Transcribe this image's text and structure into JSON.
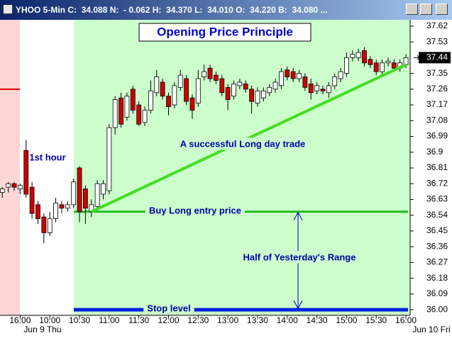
{
  "title_bar": "YHOO 5-Min C:  34.088 N:  - 0.062 H:  34.370 L:  34.010 O:  34.220 B:  34.080 ...",
  "chart_data": {
    "type": "candlestick",
    "title": "Opening Price Principle",
    "categories": [
      null,
      null,
      null,
      "16:00",
      null,
      null,
      null,
      null,
      "10:00",
      null,
      null,
      null,
      null,
      "10:30",
      null,
      null,
      null,
      null,
      "11:00",
      null,
      null,
      null,
      null,
      "11:30",
      null,
      null,
      null,
      null,
      "12:00",
      null,
      null,
      null,
      null,
      "12:30",
      null,
      null,
      null,
      null,
      "13:00",
      null,
      null,
      null,
      null,
      "13:30",
      null,
      null,
      null,
      null,
      "14:00",
      null,
      null,
      null,
      null,
      "14:30",
      null,
      null,
      null,
      null,
      "15:00",
      null,
      null,
      null,
      null,
      "15:30",
      null,
      null,
      null,
      null,
      "16:00"
    ],
    "date_labels": [
      "Jun 9 Thu",
      "Jun 10 Fri"
    ],
    "open": [
      36.67,
      36.7,
      36.72,
      36.69,
      36.91,
      36.7,
      36.6,
      36.53,
      36.44,
      36.52,
      36.6,
      36.58,
      36.6,
      36.81,
      36.69,
      36.56,
      36.59,
      36.66,
      36.68,
      37.04,
      37.21,
      37.1,
      37.26,
      37.17,
      37.07,
      37.14,
      37.24,
      37.3,
      37.22,
      37.17,
      37.27,
      37.32,
      37.21,
      37.18,
      37.33,
      37.38,
      37.34,
      37.32,
      37.27,
      37.22,
      37.28,
      37.29,
      37.26,
      37.18,
      37.21,
      37.24,
      37.26,
      37.28,
      37.37,
      37.36,
      37.32,
      37.33,
      37.29,
      37.25,
      37.26,
      37.24,
      37.28,
      37.32,
      37.35,
      37.44,
      37.44,
      37.48,
      37.43,
      37.41,
      37.36,
      37.41,
      37.41,
      37.38,
      37.4
    ],
    "high": [
      36.7,
      36.73,
      36.73,
      36.72,
      36.97,
      36.73,
      36.62,
      36.55,
      36.56,
      36.64,
      36.62,
      36.62,
      36.75,
      36.82,
      36.71,
      36.63,
      36.74,
      36.74,
      37.06,
      37.22,
      37.24,
      37.24,
      37.28,
      37.19,
      37.16,
      37.31,
      37.37,
      37.32,
      37.24,
      37.3,
      37.37,
      37.34,
      37.23,
      37.37,
      37.4,
      37.4,
      37.36,
      37.34,
      37.29,
      37.31,
      37.32,
      37.31,
      37.28,
      37.27,
      37.27,
      37.29,
      37.32,
      37.38,
      37.39,
      37.38,
      37.37,
      37.35,
      37.32,
      37.3,
      37.28,
      37.3,
      37.35,
      37.38,
      37.47,
      37.48,
      37.49,
      37.5,
      37.45,
      37.43,
      37.43,
      37.44,
      37.43,
      37.43,
      37.46
    ],
    "low": [
      36.64,
      36.67,
      36.68,
      36.66,
      36.64,
      36.52,
      36.49,
      36.38,
      36.42,
      36.5,
      36.55,
      36.56,
      36.58,
      36.5,
      36.49,
      36.53,
      36.57,
      36.63,
      36.66,
      37.0,
      37.04,
      37.08,
      37.12,
      37.05,
      37.05,
      37.12,
      37.22,
      37.2,
      37.11,
      37.15,
      37.25,
      37.17,
      37.09,
      37.16,
      37.31,
      37.3,
      37.29,
      37.22,
      37.14,
      37.2,
      37.26,
      37.24,
      37.12,
      37.16,
      37.19,
      37.22,
      37.24,
      37.26,
      37.31,
      37.3,
      37.3,
      37.25,
      37.2,
      37.23,
      37.23,
      37.21,
      37.26,
      37.3,
      37.33,
      37.42,
      37.42,
      37.39,
      37.38,
      37.34,
      37.34,
      37.39,
      37.36,
      37.36,
      37.38
    ],
    "close": [
      36.69,
      36.72,
      36.7,
      36.71,
      36.66,
      36.55,
      36.52,
      36.44,
      36.52,
      36.61,
      36.58,
      36.6,
      36.73,
      36.56,
      36.58,
      36.6,
      36.72,
      36.72,
      37.04,
      37.2,
      37.06,
      37.22,
      37.14,
      37.06,
      37.14,
      37.25,
      37.33,
      37.22,
      37.16,
      37.28,
      37.34,
      37.19,
      37.14,
      37.32,
      37.36,
      37.32,
      37.31,
      37.24,
      37.2,
      37.29,
      37.3,
      37.26,
      37.19,
      37.25,
      37.25,
      37.27,
      37.3,
      37.36,
      37.33,
      37.32,
      37.35,
      37.27,
      37.24,
      37.28,
      37.25,
      37.28,
      37.33,
      37.36,
      37.44,
      37.46,
      37.47,
      37.41,
      37.4,
      37.36,
      37.41,
      37.42,
      37.38,
      37.41,
      37.44
    ],
    "up_color": "#ffffff",
    "down_color": "#cc0000",
    "ylim": [
      35.968,
      37.656
    ],
    "yticks": [
      {
        "value": 36,
        "label": "36.00"
      },
      36.09,
      36.18,
      36.27,
      36.36,
      36.45,
      36.54,
      36.63,
      36.72,
      36.81,
      36.9,
      36.99,
      37.08,
      37.17,
      37.26,
      37.35,
      37.53,
      37.62
    ],
    "last_price": {
      "value": 37.44,
      "label": "37.44"
    },
    "reference_level": 37.26,
    "first_hour_label": "1st hour",
    "trend_line": {
      "label": "A successful Long day trade",
      "x": [
        15,
        68
      ],
      "y": [
        36.56,
        37.4
      ],
      "color": "#44dd22"
    },
    "entry_level": {
      "label": "Buy Long entry price",
      "value": 36.56,
      "color": "#22bb22"
    },
    "stop_level": {
      "label": "Stop level",
      "value": 36,
      "color": "#0022dd"
    },
    "range_label": "Half of Yesterday's Range"
  }
}
